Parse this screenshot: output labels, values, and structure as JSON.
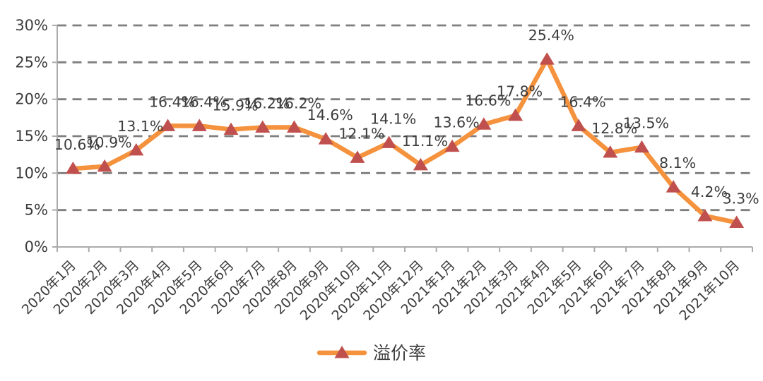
{
  "chart_data": {
    "type": "line",
    "title": "",
    "series_name": "溢价率",
    "categories": [
      "2020年1月",
      "2020年2月",
      "2020年3月",
      "2020年4月",
      "2020年5月",
      "2020年6月",
      "2020年7月",
      "2020年8月",
      "2020年9月",
      "2020年10月",
      "2020年11月",
      "2020年12月",
      "2021年1月",
      "2021年2月",
      "2021年3月",
      "2021年4月",
      "2021年5月",
      "2021年6月",
      "2021年7月",
      "2021年8月",
      "2021年9月",
      "2021年10月"
    ],
    "values": [
      10.6,
      10.9,
      13.1,
      16.4,
      16.4,
      15.9,
      16.2,
      16.2,
      14.6,
      12.1,
      14.1,
      11.1,
      13.6,
      16.6,
      17.8,
      25.4,
      16.4,
      12.8,
      13.5,
      8.1,
      4.2,
      3.3
    ],
    "unit": "%",
    "ylim": [
      0,
      30
    ],
    "ytick_step": 5,
    "ytick_labels": [
      "0%",
      "5%",
      "10%",
      "15%",
      "20%",
      "25%",
      "30%"
    ],
    "grid": "horizontal-dashed",
    "legend_position": "bottom",
    "data_labels_visible": true,
    "colors": {
      "line": "#F5923E",
      "marker": "#C0504D",
      "grid": "#7F7F7F",
      "axis": "#ABABAB",
      "text": "#3d3d3d",
      "background": "#ffffff"
    }
  }
}
